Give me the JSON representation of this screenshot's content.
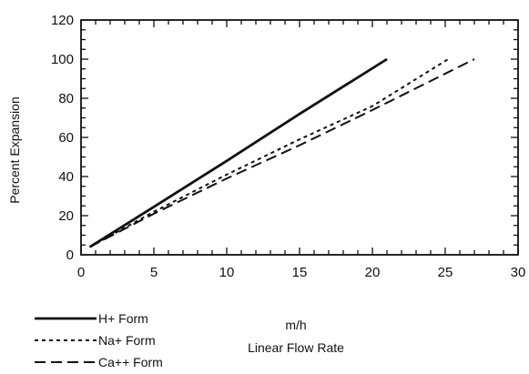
{
  "chart_data": {
    "type": "line",
    "title": "",
    "xlabel_unit": "m/h",
    "xlabel": "Linear Flow Rate",
    "ylabel": "Percent Expansion",
    "xlim": [
      0,
      30
    ],
    "ylim": [
      0,
      120
    ],
    "x_ticks": [
      "0",
      "5",
      "10",
      "15",
      "20",
      "25",
      "30"
    ],
    "y_ticks": [
      "0",
      "20",
      "40",
      "60",
      "80",
      "100",
      "120"
    ],
    "grid": false,
    "legend_position": "bottom-left",
    "series": [
      {
        "name": "H+ Form",
        "style": "solid",
        "x": [
          0.6,
          5,
          10,
          15,
          21
        ],
        "y": [
          4,
          24.5,
          48,
          72,
          100
        ]
      },
      {
        "name": "Na+ Form",
        "style": "dotted",
        "x": [
          0.6,
          5,
          10,
          15,
          20,
          25.2
        ],
        "y": [
          4,
          22,
          41,
          59,
          76,
          100
        ]
      },
      {
        "name": "Ca++ Form",
        "style": "dashed",
        "x": [
          0.6,
          5,
          10,
          15,
          20,
          27
        ],
        "y": [
          4,
          21,
          39,
          56,
          74,
          100
        ]
      }
    ]
  }
}
